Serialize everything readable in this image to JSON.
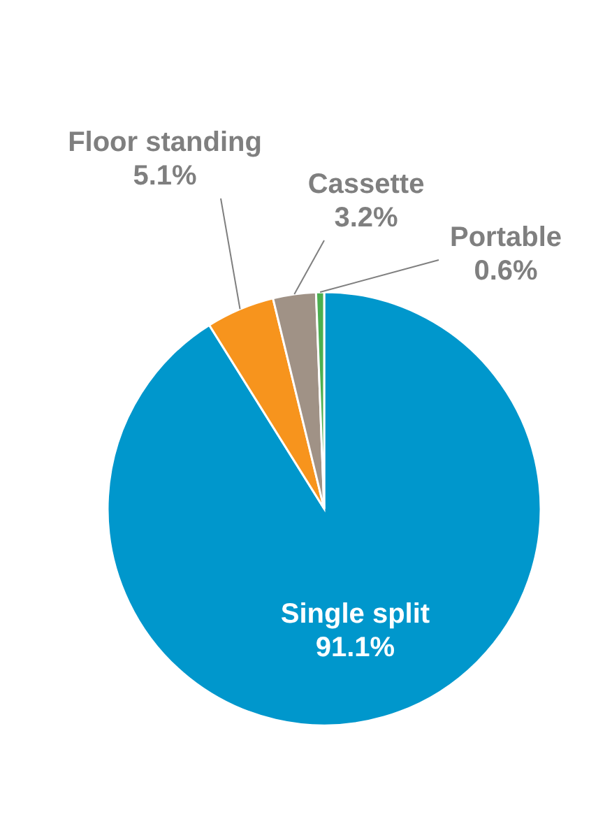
{
  "chart_data": {
    "type": "pie",
    "categories": [
      "Single split",
      "Floor standing",
      "Cassette",
      "Portable"
    ],
    "values": [
      91.1,
      5.1,
      3.2,
      0.6
    ],
    "value_labels": [
      "91.1%",
      "5.1%",
      "3.2%",
      "0.6%"
    ],
    "colors": [
      "#0097cc",
      "#f7941d",
      "#a09286",
      "#4caf50"
    ],
    "legend": false
  }
}
